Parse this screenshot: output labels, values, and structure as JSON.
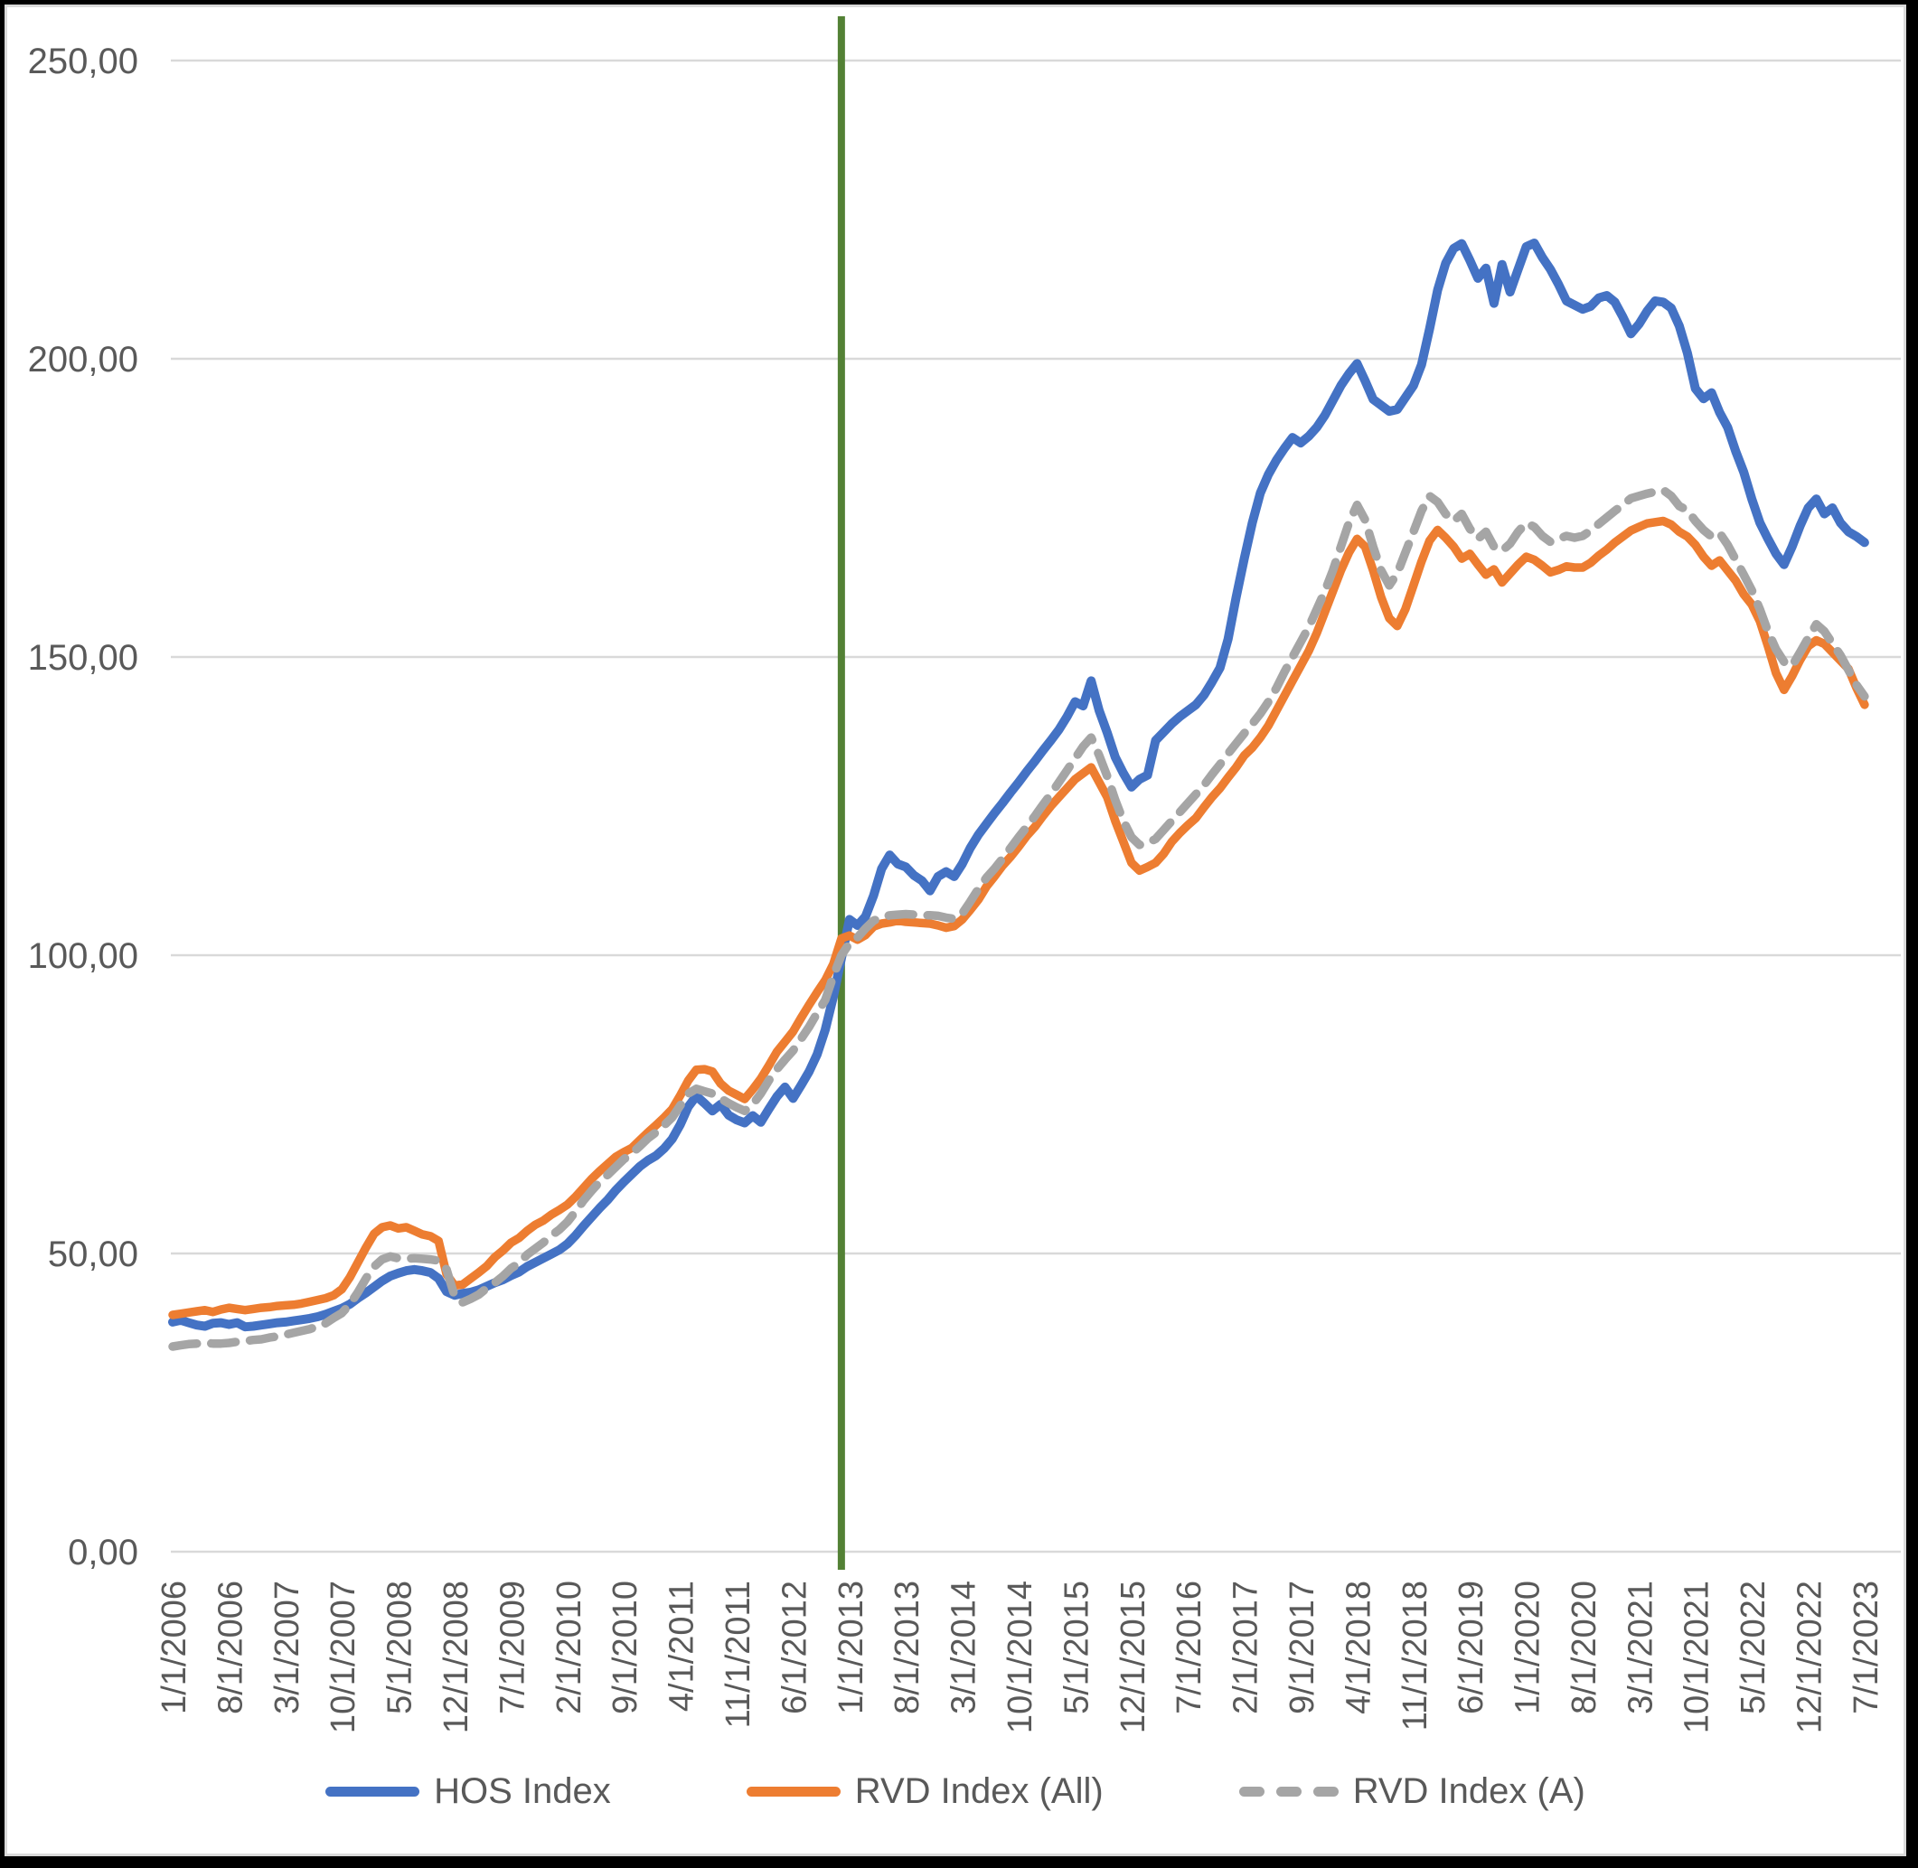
{
  "chart_data": {
    "type": "line",
    "title": "",
    "xlabel": "",
    "ylabel": "",
    "grid": true,
    "legend_position": "bottom",
    "y_axis": {
      "min": 0,
      "max": 250,
      "tick_step": 50,
      "tick_values": [
        0,
        50,
        100,
        150,
        200,
        250
      ],
      "tick_labels": [
        "0,00",
        "50,00",
        "100,00",
        "150,00",
        "200,00",
        "250,00"
      ]
    },
    "x_axis": {
      "unit": "months",
      "total_months": 211,
      "tick_interval_months": 7,
      "tick_labels": [
        "1/1/2006",
        "8/1/2006",
        "3/1/2007",
        "10/1/2007",
        "5/1/2008",
        "12/1/2008",
        "7/1/2009",
        "2/1/2010",
        "9/1/2010",
        "4/1/2011",
        "11/1/2011",
        "6/1/2012",
        "1/1/2013",
        "8/1/2013",
        "3/1/2014",
        "10/1/2014",
        "5/1/2015",
        "12/1/2015",
        "7/1/2016",
        "2/1/2017",
        "9/1/2017",
        "4/1/2018",
        "11/1/2018",
        "6/1/2019",
        "1/1/2020",
        "8/1/2020",
        "3/1/2021",
        "10/1/2021",
        "5/1/2022",
        "12/1/2022",
        "7/1/2023"
      ]
    },
    "reference_line": {
      "label": "1/1/2013",
      "month_index": 83,
      "color": "#538135"
    },
    "colors": {
      "grid": "#d9d9d9",
      "axis_text": "#595959",
      "background": "#ffffff",
      "frame": "#000000"
    },
    "series": [
      {
        "name": "HOS Index",
        "color": "#4472C4",
        "style": "solid",
        "values": [
          38.5,
          38.8,
          38.4,
          38.0,
          37.8,
          38.3,
          38.4,
          38.1,
          38.4,
          37.7,
          37.8,
          38.0,
          38.2,
          38.4,
          38.5,
          38.7,
          38.9,
          39.1,
          39.4,
          39.8,
          40.3,
          40.8,
          41.5,
          42.5,
          43.4,
          44.4,
          45.4,
          46.2,
          46.7,
          47.1,
          47.3,
          47.1,
          46.8,
          45.8,
          43.6,
          43.0,
          43.3,
          43.5,
          43.9,
          44.5,
          45.1,
          45.6,
          46.3,
          46.9,
          47.8,
          48.5,
          49.2,
          49.9,
          50.6,
          51.6,
          53.0,
          54.6,
          56.1,
          57.6,
          59.0,
          60.6,
          62.0,
          63.3,
          64.6,
          65.6,
          66.4,
          67.6,
          69.2,
          71.6,
          74.6,
          76.4,
          75.2,
          73.9,
          75.0,
          73.2,
          72.4,
          71.9,
          73.1,
          72.0,
          74.2,
          76.3,
          77.9,
          76.0,
          78.2,
          80.5,
          83.4,
          87.5,
          93.0,
          99.5,
          106.0,
          105.0,
          106.5,
          110.0,
          114.5,
          116.8,
          115.3,
          114.8,
          113.4,
          112.5,
          110.8,
          113.2,
          114.0,
          113.2,
          115.3,
          118.0,
          120.2,
          122.0,
          123.8,
          125.5,
          127.3,
          129.0,
          130.8,
          132.5,
          134.3,
          136.0,
          137.8,
          140.0,
          142.5,
          141.8,
          146.0,
          141.0,
          137.3,
          133.2,
          130.5,
          128.2,
          129.5,
          130.2,
          136.0,
          137.4,
          138.8,
          140.0,
          141.0,
          142.0,
          143.6,
          145.8,
          148.2,
          153.0,
          160.0,
          166.5,
          172.5,
          177.5,
          180.6,
          183.0,
          185.0,
          186.8,
          185.9,
          187.0,
          188.5,
          190.5,
          193.0,
          195.5,
          197.5,
          199.2,
          196.3,
          193.2,
          192.2,
          191.2,
          191.5,
          193.5,
          195.5,
          199.0,
          205.0,
          211.5,
          216.0,
          218.5,
          219.3,
          216.5,
          213.5,
          215.2,
          209.3,
          215.8,
          211.2,
          215.0,
          218.8,
          219.4,
          217.0,
          215.0,
          212.5,
          209.7,
          209.0,
          208.3,
          208.8,
          210.2,
          210.6,
          209.5,
          207.0,
          204.2,
          205.8,
          208.0,
          209.7,
          209.5,
          208.5,
          205.5,
          201.0,
          195.0,
          193.3,
          194.3,
          191.0,
          188.5,
          184.5,
          181.0,
          176.5,
          172.5,
          169.8,
          167.3,
          165.5,
          168.5,
          172.0,
          175.0,
          176.5,
          174.0,
          175.0,
          172.5,
          171.0,
          170.2,
          169.2
        ]
      },
      {
        "name": "RVD Index (All)",
        "color": "#ED7D31",
        "style": "solid",
        "values": [
          39.7,
          39.9,
          40.1,
          40.3,
          40.5,
          40.2,
          40.6,
          40.9,
          40.7,
          40.5,
          40.7,
          40.9,
          41.0,
          41.2,
          41.3,
          41.4,
          41.6,
          41.9,
          42.2,
          42.5,
          43.0,
          44.0,
          46.0,
          48.5,
          51.0,
          53.3,
          54.4,
          54.7,
          54.2,
          54.4,
          53.8,
          53.2,
          52.9,
          52.1,
          46.5,
          44.6,
          44.8,
          45.8,
          46.8,
          47.9,
          49.4,
          50.5,
          51.8,
          52.6,
          53.8,
          54.8,
          55.5,
          56.5,
          57.3,
          58.2,
          59.5,
          61.0,
          62.5,
          63.8,
          65.0,
          66.2,
          67.0,
          67.7,
          69.0,
          70.3,
          71.5,
          72.8,
          74.2,
          76.5,
          79.0,
          80.8,
          80.9,
          80.5,
          78.5,
          77.3,
          76.6,
          75.9,
          77.5,
          79.3,
          81.5,
          83.8,
          85.5,
          87.2,
          89.5,
          91.7,
          93.8,
          95.8,
          98.5,
          102.8,
          103.3,
          102.6,
          103.4,
          104.8,
          105.3,
          105.5,
          105.8,
          105.6,
          105.5,
          105.4,
          105.3,
          105.0,
          104.6,
          104.9,
          106.0,
          107.6,
          109.3,
          111.5,
          113.2,
          115.0,
          116.5,
          118.2,
          120.0,
          121.5,
          123.3,
          125.0,
          126.5,
          128.0,
          129.5,
          130.5,
          131.5,
          129.0,
          126.5,
          122.5,
          119.0,
          115.5,
          114.2,
          114.8,
          115.5,
          117.0,
          119.0,
          120.5,
          121.8,
          123.0,
          124.8,
          126.5,
          128.0,
          129.8,
          131.5,
          133.5,
          134.8,
          136.5,
          138.5,
          141.0,
          143.5,
          146.0,
          148.5,
          151.0,
          154.0,
          157.5,
          161.0,
          164.5,
          167.5,
          169.8,
          168.5,
          164.5,
          160.0,
          156.5,
          155.2,
          158.0,
          162.0,
          166.0,
          169.5,
          171.3,
          170.0,
          168.5,
          166.5,
          167.3,
          165.5,
          163.8,
          164.7,
          162.5,
          164.0,
          165.5,
          166.8,
          166.3,
          165.3,
          164.2,
          164.6,
          165.2,
          165.0,
          165.0,
          165.8,
          167.0,
          168.0,
          169.2,
          170.2,
          171.2,
          171.8,
          172.4,
          172.6,
          172.8,
          172.2,
          171.0,
          170.2,
          168.8,
          166.8,
          165.3,
          166.2,
          164.5,
          162.8,
          160.5,
          158.8,
          156.0,
          151.8,
          147.3,
          144.5,
          146.8,
          149.5,
          151.8,
          152.8,
          152.2,
          150.8,
          149.4,
          148.0,
          144.8,
          142.0
        ]
      },
      {
        "name": "RVD Index (A)",
        "color": "#A5A5A5",
        "style": "dashed",
        "values": [
          34.4,
          34.6,
          34.8,
          34.9,
          35.0,
          34.9,
          34.9,
          35.0,
          35.2,
          35.3,
          35.5,
          35.6,
          35.9,
          36.1,
          36.4,
          36.7,
          37.0,
          37.3,
          37.8,
          38.3,
          39.2,
          40.0,
          41.5,
          43.5,
          45.8,
          47.8,
          49.0,
          49.5,
          49.2,
          49.1,
          49.2,
          49.1,
          49.0,
          48.8,
          47.3,
          42.8,
          41.8,
          42.4,
          43.1,
          44.2,
          45.1,
          46.2,
          47.5,
          48.4,
          49.8,
          50.8,
          51.8,
          53.0,
          54.0,
          55.3,
          57.0,
          58.9,
          60.5,
          62.0,
          63.2,
          64.5,
          65.8,
          66.8,
          68.0,
          69.3,
          70.3,
          71.5,
          72.8,
          74.8,
          76.8,
          77.6,
          77.2,
          76.8,
          76.0,
          75.2,
          74.5,
          73.9,
          75.0,
          76.8,
          79.0,
          80.9,
          82.5,
          84.0,
          86.0,
          88.0,
          90.3,
          92.5,
          96.5,
          100.0,
          102.0,
          103.0,
          104.5,
          105.8,
          106.3,
          106.7,
          106.8,
          106.9,
          106.8,
          106.7,
          106.7,
          106.6,
          106.3,
          106.1,
          107.0,
          109.0,
          111.1,
          113.0,
          114.5,
          116.2,
          118.0,
          119.8,
          121.5,
          123.3,
          125.2,
          127.0,
          129.0,
          131.0,
          133.0,
          135.0,
          136.5,
          133.5,
          130.0,
          126.0,
          122.5,
          119.8,
          118.5,
          118.8,
          119.5,
          121.0,
          122.5,
          124.0,
          125.5,
          127.0,
          128.5,
          130.3,
          132.0,
          133.8,
          135.5,
          137.2,
          138.8,
          140.5,
          142.5,
          144.8,
          147.5,
          150.0,
          152.5,
          155.0,
          158.0,
          161.0,
          164.5,
          168.5,
          172.5,
          175.5,
          173.0,
          168.5,
          164.5,
          162.0,
          164.0,
          167.5,
          171.0,
          174.5,
          177.0,
          176.0,
          174.0,
          172.8,
          174.0,
          171.5,
          169.8,
          171.0,
          168.5,
          167.8,
          169.0,
          171.0,
          172.5,
          171.8,
          170.3,
          169.3,
          169.8,
          170.3,
          170.0,
          170.3,
          171.2,
          172.3,
          173.4,
          174.5,
          175.5,
          176.6,
          177.0,
          177.4,
          177.7,
          178.0,
          177.0,
          175.3,
          174.6,
          172.8,
          171.3,
          170.2,
          170.8,
          168.8,
          166.3,
          163.8,
          161.2,
          158.0,
          154.3,
          151.3,
          149.2,
          148.5,
          150.8,
          153.2,
          155.5,
          154.3,
          152.3,
          150.3,
          147.8,
          145.3,
          143.4
        ]
      }
    ]
  }
}
